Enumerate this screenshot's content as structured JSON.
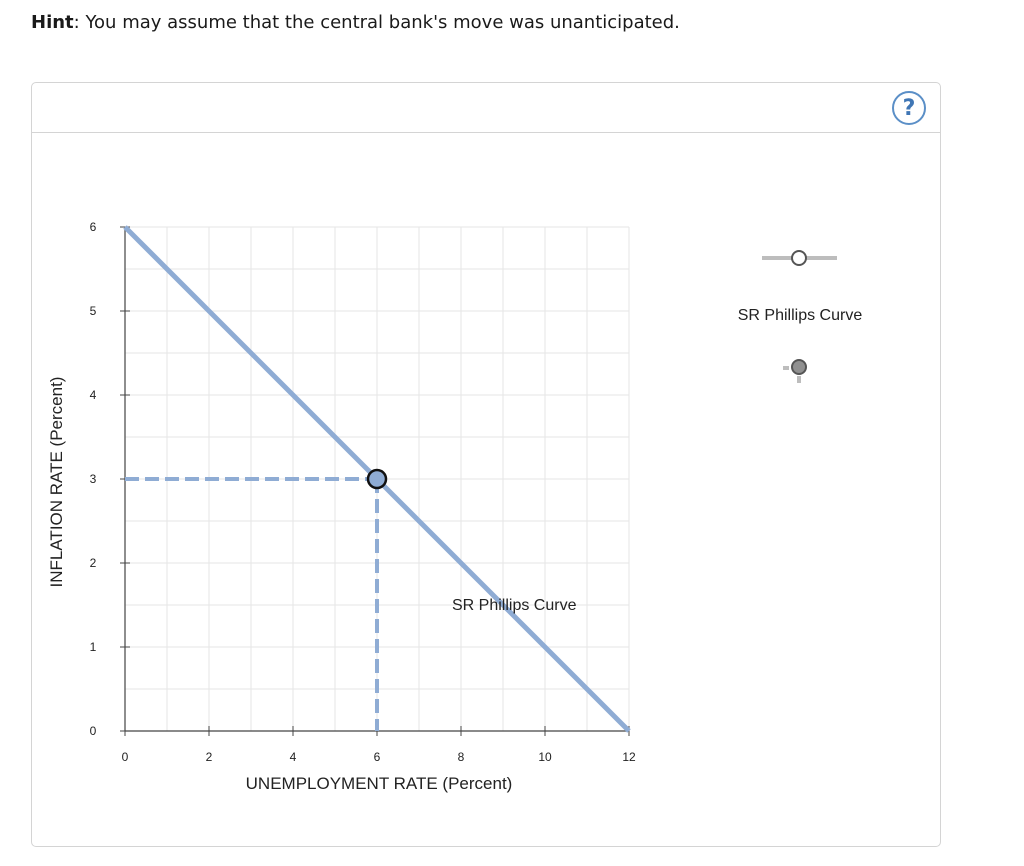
{
  "hint": {
    "label": "Hint",
    "text": ": You may assume that the central bank's move was unanticipated."
  },
  "help": {
    "icon": "question-icon",
    "symbol": "?"
  },
  "colors": {
    "curve": "#8facd4",
    "grid": "#e6e6e6",
    "axis": "#444444",
    "legend_line": "#bdbdbd",
    "legend_point": "#909090"
  },
  "chart_data": {
    "type": "line",
    "xlabel": "UNEMPLOYMENT RATE (Percent)",
    "ylabel": "INFLATION RATE (Percent)",
    "xlim": [
      0,
      12
    ],
    "ylim": [
      0,
      6
    ],
    "xticks": [
      0,
      2,
      4,
      6,
      8,
      10,
      12
    ],
    "yticks": [
      0,
      1,
      2,
      3,
      4,
      5,
      6
    ],
    "grid": true,
    "series": [
      {
        "name": "SR Phillips Curve",
        "points": [
          {
            "x": 0,
            "y": 6
          },
          {
            "x": 12,
            "y": 0
          }
        ]
      }
    ],
    "marked_point": {
      "x": 6,
      "y": 3,
      "dashed_guides": true
    },
    "curve_label": "SR Phillips Curve"
  },
  "legend": {
    "items": [
      {
        "label": "SR Phillips Curve",
        "icon": "line-with-hollow-point-icon"
      },
      {
        "label": "",
        "icon": "point-marker-icon"
      }
    ]
  }
}
